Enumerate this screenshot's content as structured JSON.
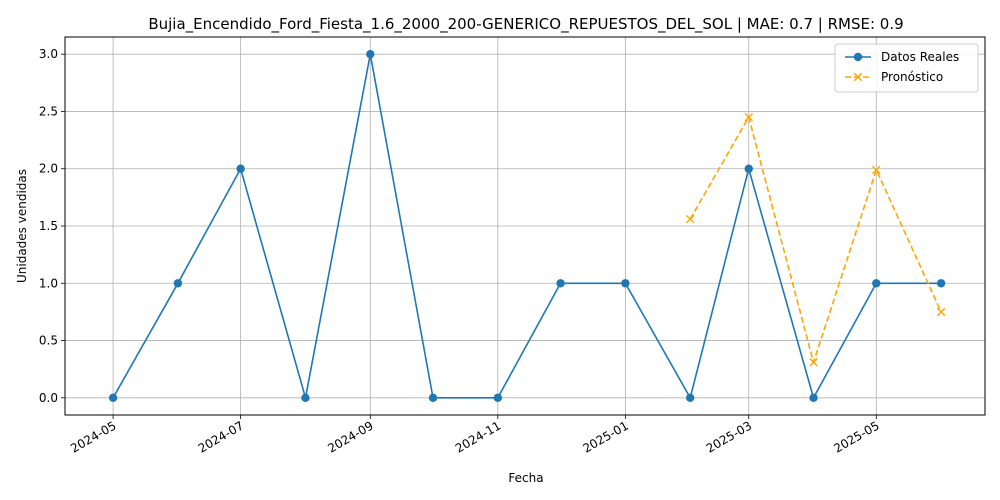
{
  "chart_data": {
    "type": "line",
    "title": "Bujia_Encendido_Ford_Fiesta_1.6_2000_200-GENERICO_REPUESTOS_DEL_SOL | MAE: 0.7 | RMSE: 0.9",
    "xlabel": "Fecha",
    "ylabel": "Unidades vendidas",
    "x_ticks": [
      "2024-05",
      "2024-07",
      "2024-09",
      "2024-11",
      "2025-01",
      "2025-03",
      "2025-05"
    ],
    "y_ticks": [
      "0.0",
      "0.5",
      "1.0",
      "1.5",
      "2.0",
      "2.5",
      "3.0"
    ],
    "ylim": [
      -0.15,
      3.15
    ],
    "xlim": [
      "2024-04-08",
      "2025-06-22"
    ],
    "grid": true,
    "legend_position": "top-right",
    "series": [
      {
        "name": "Datos Reales",
        "color": "#1f77b4",
        "marker": "circle",
        "line_style": "solid",
        "x": [
          "2024-05-01",
          "2024-06-01",
          "2024-07-01",
          "2024-08-01",
          "2024-09-01",
          "2024-10-01",
          "2024-11-01",
          "2024-12-01",
          "2025-01-01",
          "2025-02-01",
          "2025-03-01",
          "2025-04-01",
          "2025-05-01",
          "2025-06-01"
        ],
        "values": [
          0,
          1,
          2,
          0,
          3,
          0,
          0,
          1,
          1,
          0,
          2,
          0,
          1,
          1
        ]
      },
      {
        "name": "Pronóstico",
        "color": "#ffa500",
        "marker": "x",
        "line_style": "dashed",
        "x": [
          "2025-02-01",
          "2025-03-01",
          "2025-04-01",
          "2025-05-01",
          "2025-06-01"
        ],
        "values": [
          1.56,
          2.45,
          0.31,
          1.99,
          0.75
        ]
      }
    ]
  }
}
